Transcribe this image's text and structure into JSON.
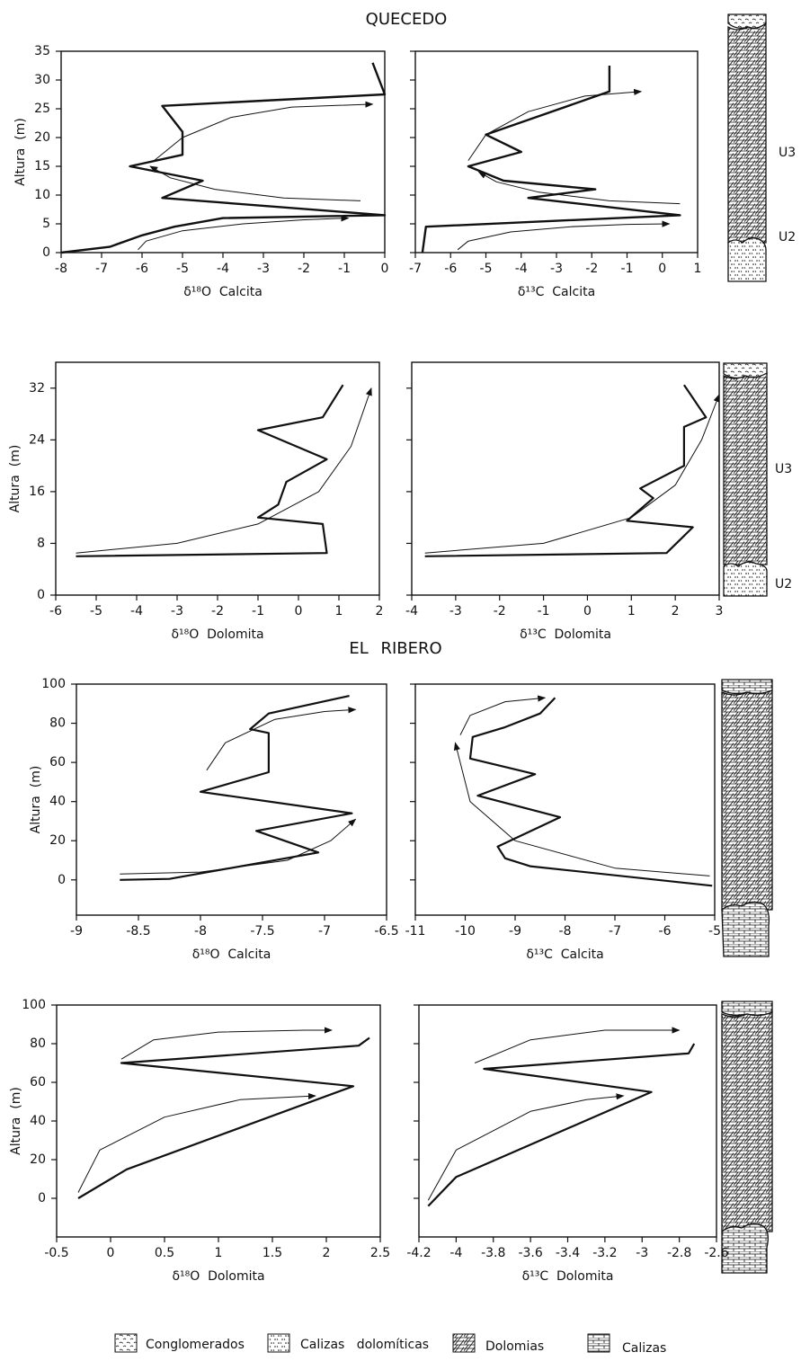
{
  "sections": [
    "QUECEDO",
    "EL RIBERO"
  ],
  "units": [
    [
      "U3",
      "U2"
    ],
    [
      "U3",
      "U2"
    ]
  ],
  "legend": [
    "Conglomerados",
    "Calizas   dolomíticas",
    "Dolomias",
    "Calizas"
  ],
  "chart_data": [
    {
      "type": "line",
      "xlabel": "δ¹⁸O  Calcita",
      "ylabel": "Altura  (m)",
      "xlim": [
        -8,
        0
      ],
      "xticks": [
        -8,
        -7,
        -6,
        -5,
        -4,
        -3,
        -2,
        -1,
        0
      ],
      "ylim": [
        0,
        35
      ],
      "yticks": [
        0,
        5,
        10,
        15,
        20,
        25,
        30,
        35
      ],
      "ytick_labels": true,
      "series": [
        {
          "color": "#111111",
          "width": 2.4,
          "arrow": false,
          "x": [
            -8,
            -6.8,
            -6,
            -5.2,
            -4,
            0,
            -5.5,
            -4.5,
            -6.3,
            -5,
            -5,
            -5.5,
            0,
            -0.3
          ],
          "values": [
            0,
            1,
            3,
            4.5,
            6,
            6.5,
            9.5,
            12.5,
            15,
            17,
            21,
            25.5,
            27.5,
            33
          ]
        },
        {
          "color": "#111111",
          "width": 1,
          "arrow": true,
          "x": [
            -6.1,
            -5.9,
            -5,
            -3.5,
            -2,
            -0.9
          ],
          "values": [
            0.5,
            2,
            3.8,
            5,
            5.7,
            6
          ]
        },
        {
          "color": "#111111",
          "width": 1,
          "arrow": true,
          "x": [
            -0.6,
            -2.5,
            -4.2,
            -5.3,
            -5.8
          ],
          "values": [
            9,
            9.5,
            11,
            13,
            15
          ]
        },
        {
          "color": "#111111",
          "width": 1,
          "arrow": true,
          "x": [
            -5.7,
            -5,
            -3.8,
            -2.3,
            -0.3
          ],
          "values": [
            16,
            20,
            23.5,
            25.3,
            25.8
          ]
        }
      ]
    },
    {
      "type": "line",
      "xlabel": "δ¹³C  Calcita",
      "xlim": [
        -7,
        1
      ],
      "xticks": [
        -7,
        -6,
        -5,
        -4,
        -3,
        -2,
        -1,
        0,
        1
      ],
      "ylim": [
        0,
        35
      ],
      "yticks": [
        0,
        5,
        10,
        15,
        20,
        25,
        30,
        35
      ],
      "ytick_labels": false,
      "series": [
        {
          "color": "#111111",
          "width": 2.4,
          "arrow": false,
          "x": [
            -6.8,
            -6.7,
            0.5,
            -3.8,
            -1.9,
            -4.5,
            -5.5,
            -4,
            -5,
            -1.5,
            -1.5
          ],
          "values": [
            0,
            4.5,
            6.5,
            9.5,
            11,
            12.5,
            15,
            17.5,
            20.5,
            28,
            32.5
          ]
        },
        {
          "color": "#111111",
          "width": 1,
          "arrow": true,
          "x": [
            -5.8,
            -5.5,
            -4.3,
            -2.6,
            -1,
            0.2
          ],
          "values": [
            0.5,
            2,
            3.6,
            4.5,
            4.9,
            5
          ]
        },
        {
          "color": "#111111",
          "width": 1,
          "arrow": true,
          "x": [
            0.5,
            -1.5,
            -3.5,
            -4.7,
            -5.2
          ],
          "values": [
            8.5,
            9,
            10.5,
            12.3,
            14
          ]
        },
        {
          "color": "#111111",
          "width": 1,
          "arrow": true,
          "x": [
            -5.5,
            -5,
            -3.8,
            -2.2,
            -0.6
          ],
          "values": [
            16,
            20.5,
            24.5,
            27.2,
            28
          ]
        }
      ]
    },
    {
      "type": "line",
      "xlabel": "δ¹⁸O  Dolomita",
      "ylabel": "Altura  (m)",
      "xlim": [
        -6,
        2
      ],
      "xticks": [
        -6,
        -5,
        -4,
        -3,
        -2,
        -1,
        0,
        1,
        2
      ],
      "ylim": [
        0,
        36
      ],
      "yticks": [
        0,
        8,
        16,
        24,
        32
      ],
      "ytick_labels": true,
      "series": [
        {
          "color": "#111111",
          "width": 2.2,
          "arrow": false,
          "x": [
            -5.5,
            0.7,
            0.6,
            -1,
            -0.5,
            -0.3,
            0.7,
            -1,
            0.6,
            1.1
          ],
          "values": [
            6,
            6.5,
            11,
            12,
            14,
            17.5,
            21,
            25.5,
            27.5,
            32.5
          ]
        },
        {
          "color": "#111111",
          "width": 1,
          "arrow": true,
          "x": [
            -5.5,
            -3,
            -1,
            0.5,
            1.3,
            1.8
          ],
          "values": [
            6.5,
            8,
            11,
            16,
            23,
            32
          ]
        }
      ]
    },
    {
      "type": "line",
      "xlabel": "δ¹³C  Dolomita",
      "xlim": [
        -4,
        3
      ],
      "xticks": [
        -4,
        -3,
        -2,
        -1,
        0,
        1,
        2,
        3
      ],
      "ylim": [
        0,
        36
      ],
      "yticks": [
        0,
        8,
        16,
        24,
        32
      ],
      "ytick_labels": false,
      "series": [
        {
          "color": "#111111",
          "width": 2.2,
          "arrow": false,
          "x": [
            -3.7,
            1.8,
            2.4,
            0.9,
            1.5,
            1.2,
            2.2,
            2.2,
            2.7,
            2.2
          ],
          "values": [
            6,
            6.5,
            10.5,
            11.5,
            15,
            16.5,
            20,
            26,
            27.5,
            32.5
          ]
        },
        {
          "color": "#111111",
          "width": 1,
          "arrow": true,
          "x": [
            -3.7,
            -1,
            1,
            2,
            2.6,
            3
          ],
          "values": [
            6.5,
            8,
            12,
            17,
            24,
            31
          ]
        }
      ]
    },
    {
      "type": "line",
      "xlabel": "δ¹⁸O  Calcita",
      "ylabel": "Altura  (m)",
      "xlim": [
        -9,
        -6.5
      ],
      "xticks": [
        -9,
        -8.5,
        -8,
        -7.5,
        -7,
        -6.5
      ],
      "ylim": [
        -18,
        100
      ],
      "yticks": [
        0,
        20,
        40,
        60,
        80,
        100
      ],
      "ytick_labels": true,
      "series": [
        {
          "color": "#111111",
          "width": 2.2,
          "arrow": false,
          "x": [
            -8.65,
            -8.25,
            -7.05,
            -7.55,
            -6.78,
            -8,
            -7.45,
            -7.45,
            -7.6,
            -7.45,
            -6.8
          ],
          "values": [
            0,
            0.5,
            14,
            25,
            34,
            45,
            55,
            75,
            77,
            85,
            94
          ]
        },
        {
          "color": "#111111",
          "width": 1,
          "arrow": true,
          "x": [
            -8.65,
            -8,
            -7.3,
            -6.95,
            -6.75
          ],
          "values": [
            3,
            4,
            10,
            20,
            31
          ]
        },
        {
          "color": "#111111",
          "width": 1,
          "arrow": true,
          "x": [
            -7.95,
            -7.8,
            -7.4,
            -7,
            -6.75
          ],
          "values": [
            56,
            70,
            82,
            86,
            87
          ]
        }
      ]
    },
    {
      "type": "line",
      "xlabel": "δ¹³C  Calcita",
      "xlim": [
        -11,
        -5
      ],
      "xticks": [
        -11,
        -10,
        -9,
        -8,
        -7,
        -6,
        -5
      ],
      "ylim": [
        -18,
        100
      ],
      "yticks": [
        0,
        20,
        40,
        60,
        80,
        100
      ],
      "ytick_labels": false,
      "series": [
        {
          "color": "#111111",
          "width": 2.2,
          "arrow": false,
          "x": [
            -5.05,
            -8.7,
            -9.2,
            -9.35,
            -8.1,
            -9.75,
            -8.6,
            -9.9,
            -9.85,
            -9.2,
            -8.5,
            -8.2
          ],
          "values": [
            -3,
            7,
            11,
            17,
            32,
            43,
            54,
            62,
            73,
            78,
            85,
            93
          ]
        },
        {
          "color": "#111111",
          "width": 1,
          "arrow": true,
          "x": [
            -5.1,
            -7,
            -9,
            -9.9,
            -10.2
          ],
          "values": [
            2,
            6,
            20,
            40,
            70
          ]
        },
        {
          "color": "#111111",
          "width": 1,
          "arrow": true,
          "x": [
            -10.1,
            -9.9,
            -9.2,
            -8.4
          ],
          "values": [
            74,
            84,
            91,
            93
          ]
        }
      ]
    },
    {
      "type": "line",
      "xlabel": "δ¹⁸O  Dolomita",
      "ylabel": "Altura  (m)",
      "xlim": [
        -0.5,
        2.5
      ],
      "xticks": [
        -0.5,
        0,
        0.5,
        1,
        1.5,
        2,
        2.5
      ],
      "ylim": [
        -20,
        100
      ],
      "yticks": [
        0,
        20,
        40,
        60,
        80,
        100
      ],
      "ytick_labels": true,
      "series": [
        {
          "color": "#111111",
          "width": 2.2,
          "arrow": false,
          "x": [
            -0.3,
            0.15,
            2.25,
            0.1,
            2.3,
            2.4
          ],
          "values": [
            0,
            15,
            58,
            70,
            79,
            83
          ]
        },
        {
          "color": "#111111",
          "width": 1,
          "arrow": true,
          "x": [
            -0.3,
            -0.1,
            0.5,
            1.2,
            1.9
          ],
          "values": [
            3,
            25,
            42,
            51,
            53
          ]
        },
        {
          "color": "#111111",
          "width": 1,
          "arrow": true,
          "x": [
            0.1,
            0.4,
            1,
            1.8,
            2.05
          ],
          "values": [
            72,
            82,
            86,
            87,
            87
          ]
        }
      ]
    },
    {
      "type": "line",
      "xlabel": "δ¹³C  Dolomita",
      "xlim": [
        -4.2,
        -2.6
      ],
      "xticks": [
        -4.2,
        -4,
        -3.8,
        -3.6,
        -3.4,
        -3.2,
        -3,
        -2.8,
        -2.6
      ],
      "ylim": [
        -20,
        100
      ],
      "yticks": [
        0,
        20,
        40,
        60,
        80,
        100
      ],
      "ytick_labels": false,
      "series": [
        {
          "color": "#111111",
          "width": 2.2,
          "arrow": false,
          "x": [
            -4.15,
            -4,
            -2.95,
            -3.85,
            -2.75,
            -2.72
          ],
          "values": [
            -4,
            11,
            55,
            67,
            75,
            80
          ]
        },
        {
          "color": "#111111",
          "width": 1,
          "arrow": true,
          "x": [
            -4.15,
            -4,
            -3.6,
            -3.3,
            -3.1
          ],
          "values": [
            -1,
            25,
            45,
            51,
            53
          ]
        },
        {
          "color": "#111111",
          "width": 1,
          "arrow": true,
          "x": [
            -3.9,
            -3.6,
            -3.2,
            -2.9,
            -2.8
          ],
          "values": [
            70,
            82,
            87,
            87,
            87
          ]
        }
      ]
    }
  ]
}
